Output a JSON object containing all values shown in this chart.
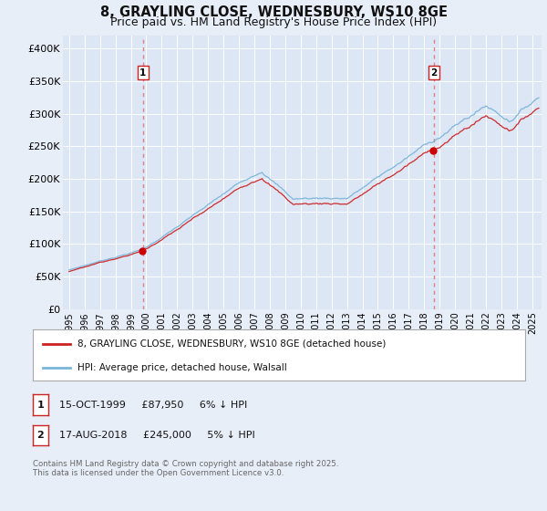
{
  "title": "8, GRAYLING CLOSE, WEDNESBURY, WS10 8GE",
  "subtitle": "Price paid vs. HM Land Registry's House Price Index (HPI)",
  "background_color": "#e8eef8",
  "plot_bg_color": "#dce6f5",
  "ylim": [
    0,
    420000
  ],
  "yticks": [
    0,
    50000,
    100000,
    150000,
    200000,
    250000,
    300000,
    350000,
    400000
  ],
  "ytick_labels": [
    "£0",
    "£50K",
    "£100K",
    "£150K",
    "£200K",
    "£250K",
    "£300K",
    "£350K",
    "£400K"
  ],
  "xlabel_years": [
    1995,
    1996,
    1997,
    1998,
    1999,
    2000,
    2001,
    2002,
    2003,
    2004,
    2005,
    2006,
    2007,
    2008,
    2009,
    2010,
    2011,
    2012,
    2013,
    2014,
    2015,
    2016,
    2017,
    2018,
    2019,
    2020,
    2021,
    2022,
    2023,
    2024,
    2025
  ],
  "sale1_date": 1999.79,
  "sale1_price": 87950,
  "sale1_label": "1",
  "sale2_date": 2018.62,
  "sale2_price": 245000,
  "sale2_label": "2",
  "legend_entry1": "8, GRAYLING CLOSE, WEDNESBURY, WS10 8GE (detached house)",
  "legend_entry2": "HPI: Average price, detached house, Walsall",
  "ann1_date": "15-OCT-1999",
  "ann1_price": "£87,950",
  "ann1_hpi": "6% ↓ HPI",
  "ann2_date": "17-AUG-2018",
  "ann2_price": "£245,000",
  "ann2_hpi": "5% ↓ HPI",
  "footer": "Contains HM Land Registry data © Crown copyright and database right 2025.\nThis data is licensed under the Open Government Licence v3.0.",
  "hpi_color": "#7ab4d8",
  "price_color": "#cc2222",
  "vline_color": "#e08080",
  "dot_color": "#cc0000",
  "grid_color": "#ffffff",
  "title_fontsize": 10.5,
  "subtitle_fontsize": 9,
  "tick_fontsize": 8
}
